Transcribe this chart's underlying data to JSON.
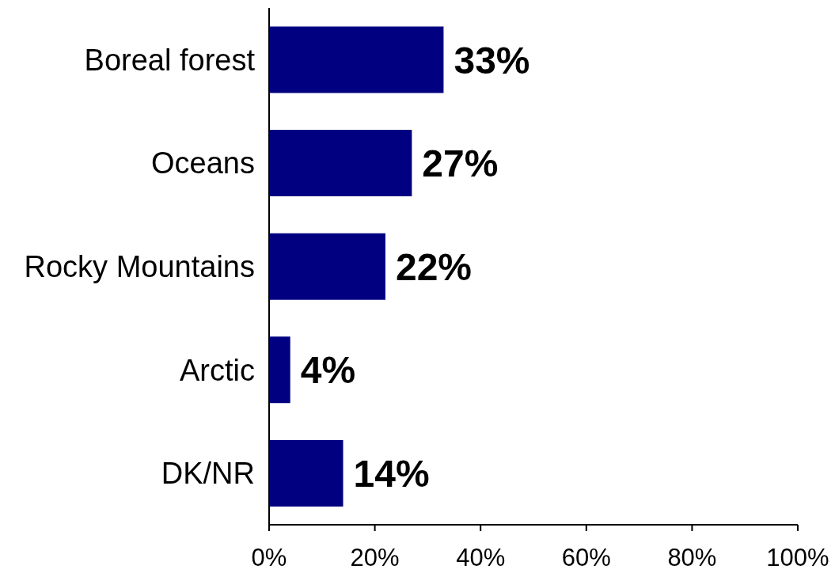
{
  "chart_data": {
    "type": "bar",
    "orientation": "horizontal",
    "categories": [
      "Boreal forest",
      "Oceans",
      "Rocky Mountains",
      "Arctic",
      "DK/NR"
    ],
    "values": [
      33,
      27,
      22,
      4,
      14
    ],
    "value_labels": [
      "33%",
      "27%",
      "22%",
      "4%",
      "14%"
    ],
    "color": "#000080",
    "xlim": [
      0,
      100
    ],
    "xticks": [
      {
        "value": 0,
        "label": "0%"
      },
      {
        "value": 20,
        "label": "20%"
      },
      {
        "value": 40,
        "label": "40%"
      },
      {
        "value": 60,
        "label": "60%"
      },
      {
        "value": 80,
        "label": "80%"
      },
      {
        "value": 100,
        "label": "100%"
      }
    ]
  }
}
